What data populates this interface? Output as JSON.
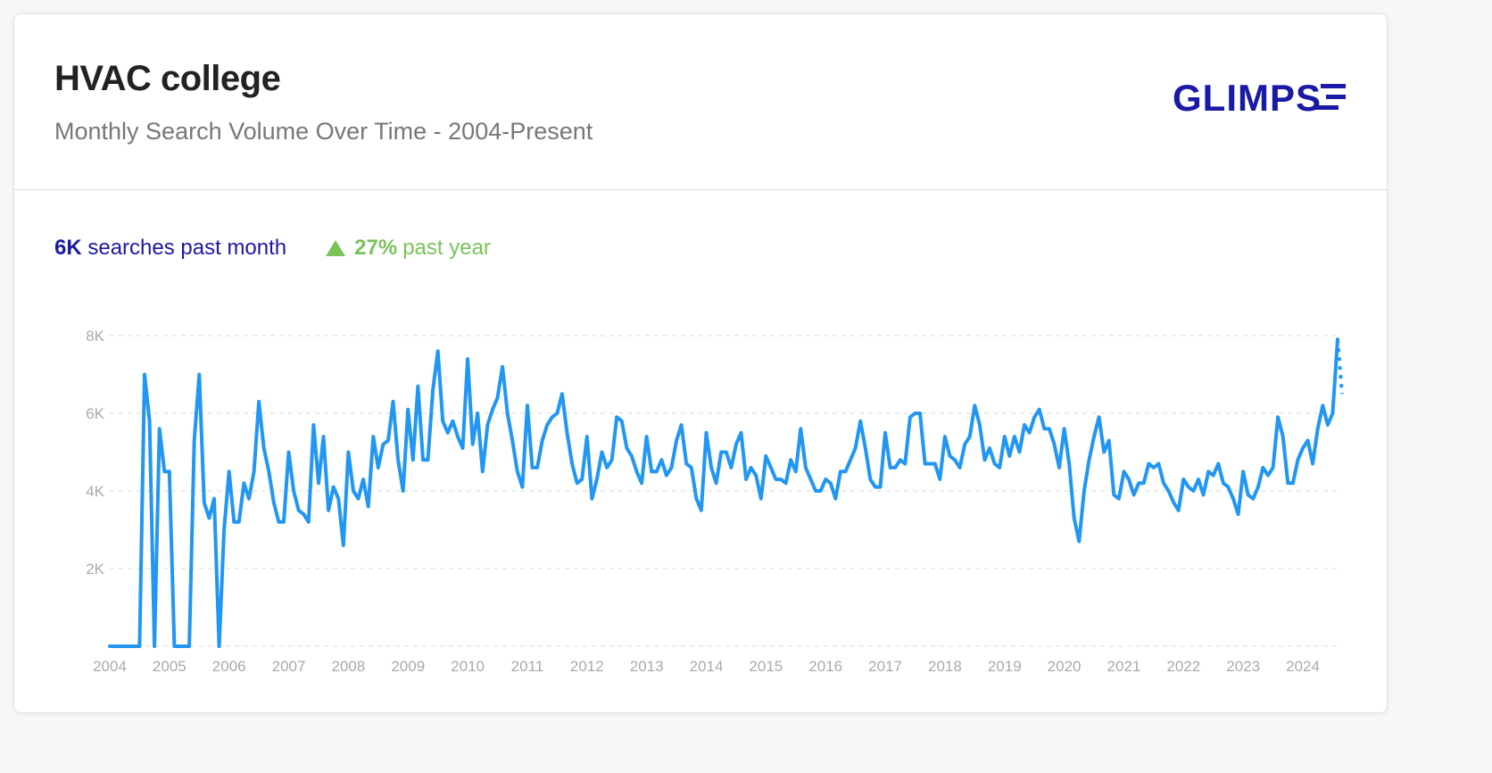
{
  "header": {
    "title": "HVAC college",
    "subtitle": "Monthly Search Volume Over Time - 2004-Present",
    "logo": "GLIMPSE"
  },
  "stats": {
    "month_value": "6K",
    "month_label": "searches past month",
    "year_change": "27%",
    "year_label": "past year",
    "year_icon": "triangle-up-icon"
  },
  "colors": {
    "line": "#2196f3",
    "brand": "#1a1aa6",
    "positive": "#7ac35a"
  },
  "chart_data": {
    "type": "line",
    "title": "",
    "xlabel": "",
    "ylabel": "",
    "ylim": [
      0,
      8000
    ],
    "yticks": [
      "2K",
      "4K",
      "6K",
      "8K"
    ],
    "ytick_values": [
      2000,
      4000,
      6000,
      8000
    ],
    "xticks": [
      "2004",
      "2005",
      "2006",
      "2007",
      "2008",
      "2009",
      "2010",
      "2011",
      "2012",
      "2013",
      "2014",
      "2015",
      "2016",
      "2017",
      "2018",
      "2019",
      "2020",
      "2021",
      "2022",
      "2023",
      "2024"
    ],
    "grid": "horizontal-dashed",
    "start": "2004-01",
    "frequency": "monthly",
    "values_k": [
      0,
      0,
      0,
      0,
      0,
      0,
      0,
      7.0,
      5.8,
      0,
      5.6,
      4.5,
      4.5,
      0,
      0,
      0,
      0,
      5.3,
      7.0,
      3.7,
      3.3,
      3.8,
      0,
      3.0,
      4.5,
      3.2,
      3.2,
      4.2,
      3.8,
      4.5,
      6.3,
      5.1,
      4.5,
      3.7,
      3.2,
      3.2,
      5.0,
      4.0,
      3.5,
      3.4,
      3.2,
      5.7,
      4.2,
      5.4,
      3.5,
      4.1,
      3.8,
      2.6,
      5.0,
      4.0,
      3.8,
      4.3,
      3.6,
      5.4,
      4.6,
      5.2,
      5.3,
      6.3,
      4.8,
      4.0,
      6.1,
      4.8,
      6.7,
      4.8,
      4.8,
      6.6,
      7.6,
      5.8,
      5.5,
      5.8,
      5.4,
      5.1,
      7.4,
      5.2,
      6.0,
      4.5,
      5.7,
      6.1,
      6.4,
      7.2,
      6.0,
      5.3,
      4.5,
      4.1,
      6.2,
      4.6,
      4.6,
      5.3,
      5.7,
      5.9,
      6.0,
      6.5,
      5.5,
      4.7,
      4.2,
      4.3,
      5.4,
      3.8,
      4.3,
      5.0,
      4.6,
      4.8,
      5.9,
      5.8,
      5.1,
      4.9,
      4.5,
      4.2,
      5.4,
      4.5,
      4.5,
      4.8,
      4.4,
      4.6,
      5.3,
      5.7,
      4.7,
      4.6,
      3.8,
      3.5,
      5.5,
      4.6,
      4.2,
      5.0,
      5.0,
      4.6,
      5.2,
      5.5,
      4.3,
      4.6,
      4.4,
      3.8,
      4.9,
      4.6,
      4.3,
      4.3,
      4.2,
      4.8,
      4.5,
      5.6,
      4.6,
      4.3,
      4.0,
      4.0,
      4.3,
      4.2,
      3.8,
      4.5,
      4.5,
      4.8,
      5.1,
      5.8,
      5.1,
      4.3,
      4.1,
      4.1,
      5.5,
      4.6,
      4.6,
      4.8,
      4.7,
      5.9,
      6.0,
      6.0,
      4.7,
      4.7,
      4.7,
      4.3,
      5.4,
      4.9,
      4.8,
      4.6,
      5.2,
      5.4,
      6.2,
      5.7,
      4.8,
      5.1,
      4.7,
      4.6,
      5.4,
      4.9,
      5.4,
      5.0,
      5.7,
      5.5,
      5.9,
      6.1,
      5.6,
      5.6,
      5.2,
      4.6,
      5.6,
      4.7,
      3.3,
      2.7,
      4.0,
      4.8,
      5.4,
      5.9,
      5.0,
      5.3,
      3.9,
      3.8,
      4.5,
      4.3,
      3.9,
      4.2,
      4.2,
      4.7,
      4.6,
      4.7,
      4.2,
      4.0,
      3.7,
      3.5,
      4.3,
      4.1,
      4.0,
      4.3,
      3.9,
      4.5,
      4.4,
      4.7,
      4.2,
      4.1,
      3.8,
      3.4,
      4.5,
      3.9,
      3.8,
      4.1,
      4.6,
      4.4,
      4.6,
      5.9,
      5.4,
      4.2,
      4.2,
      4.8,
      5.1,
      5.3,
      4.7,
      5.6,
      6.2,
      5.7,
      6.0,
      7.9
    ],
    "projected_value_k": 6.5,
    "projection_style": "dotted"
  }
}
